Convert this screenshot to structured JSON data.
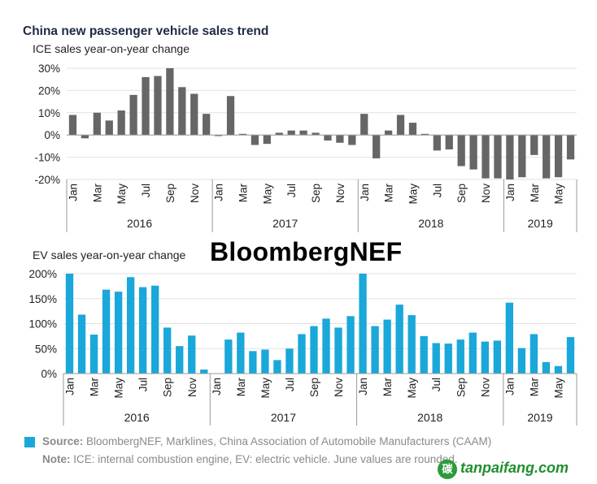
{
  "title": "China new passenger vehicle sales trend",
  "watermark": "BloombergNEF",
  "footer": {
    "source_label": "Source:",
    "source_text": " BloombergNEF, Marklines, China Association of Automobile Manufacturers (CAAM)",
    "note_label": "Note:",
    "note_text": " ICE: internal combustion engine, EV: electric vehicle. June values are rounded."
  },
  "logo_text": "tanpaifang.com",
  "logo_mark": "碳",
  "colors": {
    "ice": "#666666",
    "ev": "#1aa7d9",
    "axis": "#9a9a9a"
  },
  "month_ticks": [
    "Jan",
    "Mar",
    "May",
    "Jul",
    "Sep",
    "Nov"
  ],
  "month_ticks_2019": [
    "Jan",
    "Mar",
    "May"
  ],
  "years": [
    "2016",
    "2017",
    "2018",
    "2019"
  ],
  "chart_data": [
    {
      "type": "bar",
      "subtitle": "ICE sales year-on-year change",
      "ylim": [
        -20,
        30
      ],
      "yticks": [
        "30%",
        "20%",
        "10%",
        "0%",
        "-10%",
        "-20%"
      ],
      "ytick_values": [
        30,
        20,
        10,
        0,
        -10,
        -20
      ],
      "x": [
        "2016-01",
        "2016-02",
        "2016-03",
        "2016-04",
        "2016-05",
        "2016-06",
        "2016-07",
        "2016-08",
        "2016-09",
        "2016-10",
        "2016-11",
        "2016-12",
        "2017-01",
        "2017-02",
        "2017-03",
        "2017-04",
        "2017-05",
        "2017-06",
        "2017-07",
        "2017-08",
        "2017-09",
        "2017-10",
        "2017-11",
        "2017-12",
        "2018-01",
        "2018-02",
        "2018-03",
        "2018-04",
        "2018-05",
        "2018-06",
        "2018-07",
        "2018-08",
        "2018-09",
        "2018-10",
        "2018-11",
        "2018-12",
        "2019-01",
        "2019-02",
        "2019-03",
        "2019-04",
        "2019-05",
        "2019-06"
      ],
      "values": [
        9,
        -1.5,
        10,
        6.5,
        11,
        18,
        26,
        26.5,
        30,
        21.5,
        18.5,
        9.5,
        -0.5,
        17.5,
        0.5,
        -4.5,
        -4,
        1,
        2,
        2,
        1,
        -2.5,
        -3.5,
        -4.5,
        9.5,
        -10.5,
        2,
        9,
        5.5,
        0.5,
        -7,
        -6.5,
        -14,
        -15.5,
        -19.5,
        -19.5,
        -20,
        -19,
        -9,
        -19.5,
        -19,
        -11
      ]
    },
    {
      "type": "bar",
      "subtitle": "EV sales year-on-year change",
      "ylim": [
        0,
        200
      ],
      "yticks": [
        "200%",
        "150%",
        "100%",
        "50%",
        "0%"
      ],
      "ytick_values": [
        200,
        150,
        100,
        50,
        0
      ],
      "x": [
        "2016-01",
        "2016-02",
        "2016-03",
        "2016-04",
        "2016-05",
        "2016-06",
        "2016-07",
        "2016-08",
        "2016-09",
        "2016-10",
        "2016-11",
        "2016-12",
        "2017-01",
        "2017-02",
        "2017-03",
        "2017-04",
        "2017-05",
        "2017-06",
        "2017-07",
        "2017-08",
        "2017-09",
        "2017-10",
        "2017-11",
        "2017-12",
        "2018-01",
        "2018-02",
        "2018-03",
        "2018-04",
        "2018-05",
        "2018-06",
        "2018-07",
        "2018-08",
        "2018-09",
        "2018-10",
        "2018-11",
        "2018-12",
        "2019-01",
        "2019-02",
        "2019-03",
        "2019-04",
        "2019-05",
        "2019-06"
      ],
      "values": [
        200,
        118,
        78,
        168,
        164,
        193,
        173,
        176,
        92,
        55,
        76,
        8,
        0,
        68,
        82,
        45,
        48,
        27,
        50,
        79,
        95,
        110,
        92,
        115,
        200,
        95,
        108,
        138,
        117,
        75,
        61,
        60,
        68,
        82,
        64,
        66,
        142,
        51,
        79,
        23,
        15,
        73
      ]
    }
  ]
}
